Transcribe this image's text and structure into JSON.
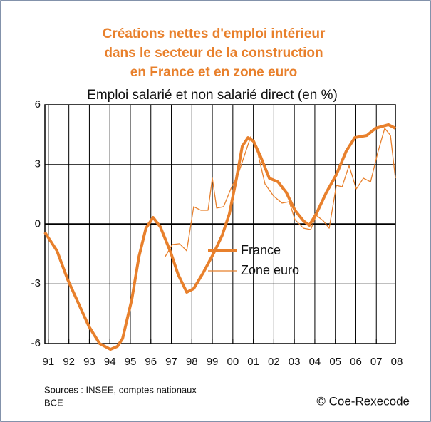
{
  "chart_data": {
    "type": "line",
    "title": [
      "Créations nettes d'emploi intérieur",
      "dans le secteur de la construction",
      "en France et en zone euro"
    ],
    "subtitle": "Emploi salarié et non salarié direct (en %)",
    "xlim": [
      1990.83,
      2007.93
    ],
    "xticks": [
      {
        "value": 1991,
        "label": "91"
      },
      {
        "value": 1992,
        "label": "92"
      },
      {
        "value": 1993,
        "label": "93"
      },
      {
        "value": 1994,
        "label": "94"
      },
      {
        "value": 1995,
        "label": "95"
      },
      {
        "value": 1996,
        "label": "96"
      },
      {
        "value": 1997,
        "label": "97"
      },
      {
        "value": 1998,
        "label": "98"
      },
      {
        "value": 1999,
        "label": "99"
      },
      {
        "value": 2000,
        "label": "00"
      },
      {
        "value": 2001,
        "label": "01"
      },
      {
        "value": 2002,
        "label": "02"
      },
      {
        "value": 2003,
        "label": "03"
      },
      {
        "value": 2004,
        "label": "04"
      },
      {
        "value": 2005,
        "label": "05"
      },
      {
        "value": 2006,
        "label": "06"
      },
      {
        "value": 2007,
        "label": "07"
      },
      {
        "value": 2008,
        "label": "08"
      }
    ],
    "ylim": [
      -6,
      6
    ],
    "yticks": [
      -6,
      -3,
      0,
      3,
      6
    ],
    "grid": true,
    "series": [
      {
        "name": "France",
        "color": "#e8802c",
        "width": 4,
        "x": [
          1990.83,
          1991.42,
          1991.94,
          1992.46,
          1992.98,
          1993.5,
          1994.03,
          1994.37,
          1994.62,
          1995.07,
          1995.42,
          1995.76,
          1996.11,
          1996.46,
          1996.98,
          1997.33,
          1997.75,
          1998.09,
          1998.55,
          1999.07,
          1999.48,
          1999.83,
          2000.18,
          2000.46,
          2000.74,
          2001.01,
          2001.36,
          2001.78,
          2002.2,
          2002.61,
          2003.03,
          2003.45,
          2003.73,
          2004.07,
          2004.56,
          2005.05,
          2005.53,
          2005.95,
          2006.54,
          2006.96,
          2007.59,
          2007.93
        ],
        "values": [
          -0.41,
          -1.34,
          -2.78,
          -3.96,
          -5.14,
          -6.0,
          -6.29,
          -6.14,
          -5.75,
          -3.78,
          -1.63,
          -0.2,
          0.34,
          -0.13,
          -1.45,
          -2.53,
          -3.42,
          -3.24,
          -2.45,
          -1.45,
          -0.56,
          0.52,
          2.31,
          3.92,
          4.35,
          4.17,
          3.38,
          2.31,
          2.13,
          1.59,
          0.7,
          0.16,
          -0.05,
          0.52,
          1.59,
          2.49,
          3.67,
          4.35,
          4.46,
          4.82,
          5.0,
          4.82
        ]
      },
      {
        "name": "Zone euro",
        "color": "#e8802c",
        "width": 1.3,
        "x": [
          1996.7,
          1997.05,
          1997.4,
          1997.75,
          1998.09,
          1998.44,
          1998.79,
          1999.0,
          1999.21,
          1999.55,
          1999.9,
          2000.25,
          2000.6,
          2000.87,
          2001.22,
          2001.57,
          2001.99,
          2002.4,
          2002.75,
          2003.03,
          2003.45,
          2003.8,
          2004.07,
          2004.42,
          2004.7,
          2005.05,
          2005.33,
          2005.67,
          2006.02,
          2006.37,
          2006.72,
          2007.06,
          2007.41,
          2007.69,
          2007.93
        ],
        "values": [
          -1.63,
          -1.02,
          -0.98,
          -1.34,
          0.88,
          0.7,
          0.7,
          2.31,
          0.81,
          0.88,
          1.77,
          2.49,
          3.56,
          4.39,
          3.56,
          2.02,
          1.41,
          1.06,
          1.13,
          0.23,
          -0.2,
          -0.27,
          0.45,
          0.16,
          -0.2,
          1.95,
          1.88,
          2.95,
          1.77,
          2.31,
          2.13,
          3.56,
          4.82,
          4.46,
          2.31
        ]
      }
    ],
    "sources": [
      "Sources : INSEE, comptes nationaux",
      "BCE"
    ],
    "copyright": "© Coe-Rexecode"
  }
}
